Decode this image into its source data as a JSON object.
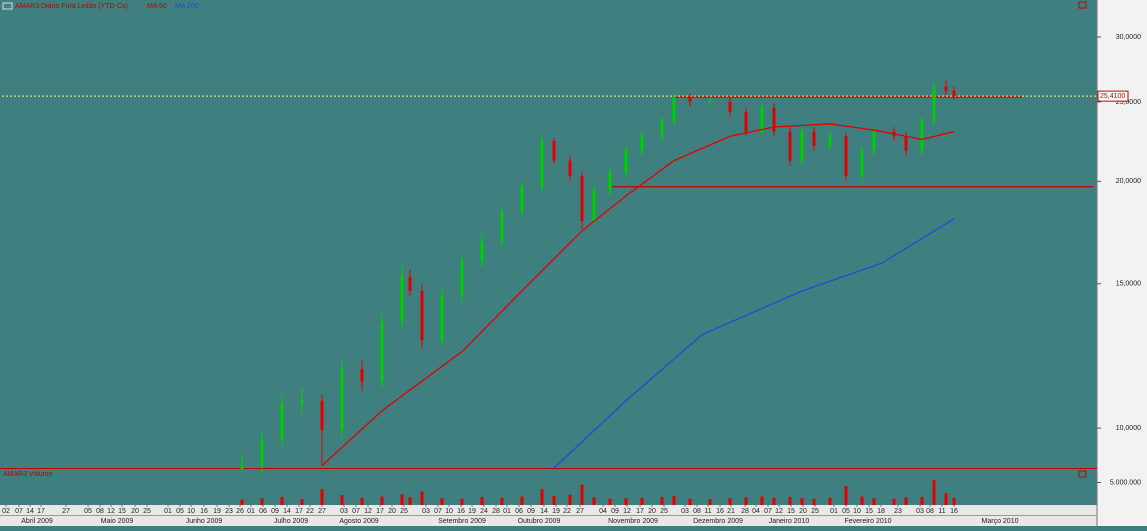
{
  "chart_data": {
    "type": "candlestick",
    "title": "AMAR3 Diário Fora Leilão (YTD-Cx)",
    "log_scale": true,
    "up_color": "#00d000",
    "down_color": "#e00000",
    "xlim": [
      0,
      273.75
    ],
    "ylim": [
      8.94,
      33.1
    ],
    "yticks": [
      {
        "value": 10,
        "label": "10,0000"
      },
      {
        "value": 15,
        "label": "15,0000"
      },
      {
        "value": 20,
        "label": "20,0000"
      },
      {
        "value": 25,
        "label": "25,0000"
      },
      {
        "value": 30,
        "label": "30,0000"
      }
    ],
    "last_price": {
      "value": 25.41,
      "label": "25,4100",
      "color": "#ffff80"
    },
    "x": [
      60,
      65,
      70,
      75,
      80,
      85,
      90,
      95,
      100,
      102,
      105,
      110,
      115,
      120,
      125,
      130,
      135,
      138,
      142,
      145,
      148,
      152,
      156,
      160,
      165,
      168,
      172,
      177,
      182,
      186,
      190,
      193,
      197,
      200,
      203,
      207,
      211,
      215,
      218,
      223,
      226,
      230,
      233,
      236,
      238
    ],
    "open": [
      8.9,
      9.0,
      9.7,
      10.7,
      10.8,
      9.95,
      11.8,
      11.4,
      13.5,
      15.3,
      14.7,
      12.8,
      14.5,
      16.0,
      16.9,
      18.4,
      19.7,
      22.4,
      21.2,
      20.3,
      17.9,
      19.5,
      20.5,
      21.8,
      22.7,
      23.7,
      25.3,
      25.0,
      25.0,
      24.3,
      23.0,
      24.6,
      23.0,
      21.2,
      23.0,
      22.1,
      22.7,
      20.3,
      21.8,
      23.0,
      22.7,
      21.8,
      23.7,
      26.1,
      25.8
    ],
    "high": [
      9.3,
      9.9,
      11.0,
      11.2,
      11.0,
      12.1,
      12.1,
      13.8,
      15.8,
      15.6,
      15.0,
      14.8,
      16.3,
      17.2,
      18.7,
      20.0,
      22.9,
      22.6,
      21.5,
      20.6,
      19.8,
      20.8,
      22.1,
      23.0,
      24.0,
      25.6,
      25.6,
      25.3,
      25.3,
      24.6,
      24.9,
      24.9,
      23.3,
      23.3,
      23.3,
      23.0,
      22.9,
      22.1,
      23.3,
      23.3,
      23.0,
      24.0,
      26.4,
      26.6,
      26.1
    ],
    "low": [
      8.94,
      8.8,
      9.5,
      10.4,
      9.0,
      9.7,
      11.1,
      11.2,
      13.2,
      14.5,
      12.5,
      12.6,
      14.2,
      15.7,
      16.6,
      18.1,
      19.4,
      21.0,
      20.0,
      17.5,
      17.7,
      19.2,
      20.2,
      21.5,
      22.4,
      23.4,
      24.7,
      24.7,
      24.0,
      22.7,
      22.8,
      22.7,
      20.9,
      20.9,
      21.8,
      21.8,
      20.0,
      20.0,
      21.5,
      22.4,
      21.5,
      21.5,
      23.4,
      25.5,
      25.2
    ],
    "close": [
      9.0,
      9.7,
      10.7,
      10.8,
      9.95,
      11.8,
      11.4,
      13.5,
      15.3,
      14.7,
      12.8,
      14.5,
      16.0,
      16.9,
      18.4,
      19.7,
      22.4,
      21.2,
      20.3,
      17.9,
      19.5,
      20.5,
      21.8,
      22.7,
      23.7,
      25.3,
      25.0,
      25.0,
      24.3,
      23.0,
      24.6,
      23.0,
      21.2,
      23.0,
      22.1,
      22.7,
      20.3,
      21.8,
      23.0,
      22.7,
      21.8,
      23.7,
      26.1,
      25.8,
      25.41
    ],
    "overlays": [
      {
        "name": "MA 50",
        "color": "#e00000",
        "x": [
          80,
          95,
          115,
          130,
          145,
          156,
          168,
          182,
          193,
          207,
          218,
          230,
          238
        ],
        "values": [
          9.0,
          10.5,
          12.4,
          14.7,
          17.4,
          19.2,
          21.2,
          22.7,
          23.3,
          23.5,
          23.1,
          22.5,
          23.0
        ]
      },
      {
        "name": "MA 200",
        "color": "#1a4fd8",
        "x": [
          138,
          156,
          175,
          200,
          220,
          238
        ],
        "values": [
          8.94,
          10.8,
          13.0,
          14.7,
          15.9,
          18.0
        ]
      }
    ],
    "hlines": [
      {
        "color": "#c00000",
        "value": 25.35,
        "x": [
          168,
          255
        ]
      },
      {
        "color": "#c00000",
        "value": 19.7,
        "x": [
          152.5,
          272.75
        ]
      }
    ],
    "volume": {
      "title": "AMAR3 Volume",
      "color": "#e00000",
      "ylim": [
        0,
        6000000
      ],
      "yticks": [
        {
          "value": 5000000,
          "label": "5.000.000"
        }
      ],
      "values": [
        1200000,
        1500000,
        1800000,
        1300000,
        3500000,
        2200000,
        1600000,
        1900000,
        2400000,
        1700000,
        3000000,
        1500000,
        1400000,
        1800000,
        1600000,
        1900000,
        3500000,
        2000000,
        2300000,
        4500000,
        1700000,
        1400000,
        1500000,
        1600000,
        1800000,
        2000000,
        1400000,
        1300000,
        1500000,
        1700000,
        1900000,
        1600000,
        1800000,
        1500000,
        1400000,
        1600000,
        4200000,
        1900000,
        1500000,
        1400000,
        1700000,
        1800000,
        5500000,
        2600000,
        1600000
      ]
    },
    "xticks_months": [
      {
        "value": 8.75,
        "label": "Abril 2009"
      },
      {
        "value": 28.75,
        "label": "Maio 2009"
      },
      {
        "value": 50.5,
        "label": "Junho 2009"
      },
      {
        "value": 72.25,
        "label": "Julho 2009"
      },
      {
        "value": 89.25,
        "label": "Agosto 2009"
      },
      {
        "value": 115,
        "label": "Setembro 2009"
      },
      {
        "value": 134.25,
        "label": "Outubro 2009"
      },
      {
        "value": 157.75,
        "label": "Novembro 2009"
      },
      {
        "value": 179,
        "label": "Dezembro 2009"
      },
      {
        "value": 196.75,
        "label": "Janeiro 2010"
      },
      {
        "value": 216.5,
        "label": "Fevereiro 2010"
      },
      {
        "value": 249.5,
        "label": "Março 2010"
      }
    ],
    "xticks_days": [
      {
        "value": 1,
        "label": "02"
      },
      {
        "value": 4.25,
        "label": "07"
      },
      {
        "value": 7,
        "label": "14"
      },
      {
        "value": 9.75,
        "label": "17"
      },
      {
        "value": 16,
        "label": "27"
      },
      {
        "value": 21.5,
        "label": "05"
      },
      {
        "value": 24.5,
        "label": "08"
      },
      {
        "value": 27.25,
        "label": "12"
      },
      {
        "value": 30,
        "label": "15"
      },
      {
        "value": 33.25,
        "label": "20"
      },
      {
        "value": 36.25,
        "label": "25"
      },
      {
        "value": 41.5,
        "label": "01"
      },
      {
        "value": 44.5,
        "label": "05"
      },
      {
        "value": 47.25,
        "label": "10"
      },
      {
        "value": 50.5,
        "label": "16"
      },
      {
        "value": 53.75,
        "label": "19"
      },
      {
        "value": 56.75,
        "label": "23"
      },
      {
        "value": 59.5,
        "label": "26"
      },
      {
        "value": 62.25,
        "label": "01"
      },
      {
        "value": 65.25,
        "label": "06"
      },
      {
        "value": 68.25,
        "label": "09"
      },
      {
        "value": 71.25,
        "label": "14"
      },
      {
        "value": 74.25,
        "label": "17"
      },
      {
        "value": 77,
        "label": "22"
      },
      {
        "value": 80,
        "label": "27"
      },
      {
        "value": 85.5,
        "label": "03"
      },
      {
        "value": 88.5,
        "label": "07"
      },
      {
        "value": 91.5,
        "label": "12"
      },
      {
        "value": 94.5,
        "label": "17"
      },
      {
        "value": 97.5,
        "label": "20"
      },
      {
        "value": 100.5,
        "label": "25"
      },
      {
        "value": 106,
        "label": "03"
      },
      {
        "value": 109,
        "label": "07"
      },
      {
        "value": 111.75,
        "label": "10"
      },
      {
        "value": 114.75,
        "label": "16"
      },
      {
        "value": 117.5,
        "label": "19"
      },
      {
        "value": 120.5,
        "label": "24"
      },
      {
        "value": 123.5,
        "label": "28"
      },
      {
        "value": 126.25,
        "label": "01"
      },
      {
        "value": 129.25,
        "label": "06"
      },
      {
        "value": 132.25,
        "label": "09"
      },
      {
        "value": 135.5,
        "label": "14"
      },
      {
        "value": 138.5,
        "label": "19"
      },
      {
        "value": 141.25,
        "label": "22"
      },
      {
        "value": 144.5,
        "label": "27"
      },
      {
        "value": 150.25,
        "label": "04"
      },
      {
        "value": 153.25,
        "label": "09"
      },
      {
        "value": 156.25,
        "label": "12"
      },
      {
        "value": 159.5,
        "label": "17"
      },
      {
        "value": 162.5,
        "label": "20"
      },
      {
        "value": 165.5,
        "label": "25"
      },
      {
        "value": 170.75,
        "label": "03"
      },
      {
        "value": 173.75,
        "label": "08"
      },
      {
        "value": 176.5,
        "label": "11"
      },
      {
        "value": 179.5,
        "label": "16"
      },
      {
        "value": 182.25,
        "label": "21"
      },
      {
        "value": 185.75,
        "label": "28"
      },
      {
        "value": 188.5,
        "label": "04"
      },
      {
        "value": 191.5,
        "label": "07"
      },
      {
        "value": 194.25,
        "label": "12"
      },
      {
        "value": 197.25,
        "label": "15"
      },
      {
        "value": 200.25,
        "label": "20"
      },
      {
        "value": 203.25,
        "label": "25"
      },
      {
        "value": 208,
        "label": "01"
      },
      {
        "value": 211,
        "label": "05"
      },
      {
        "value": 213.75,
        "label": "10"
      },
      {
        "value": 216.75,
        "label": "15"
      },
      {
        "value": 219.75,
        "label": "18"
      },
      {
        "value": 224,
        "label": "23"
      },
      {
        "value": 229.5,
        "label": "03"
      },
      {
        "value": 232,
        "label": "08"
      },
      {
        "value": 235,
        "label": "11"
      },
      {
        "value": 238,
        "label": "16"
      }
    ]
  }
}
